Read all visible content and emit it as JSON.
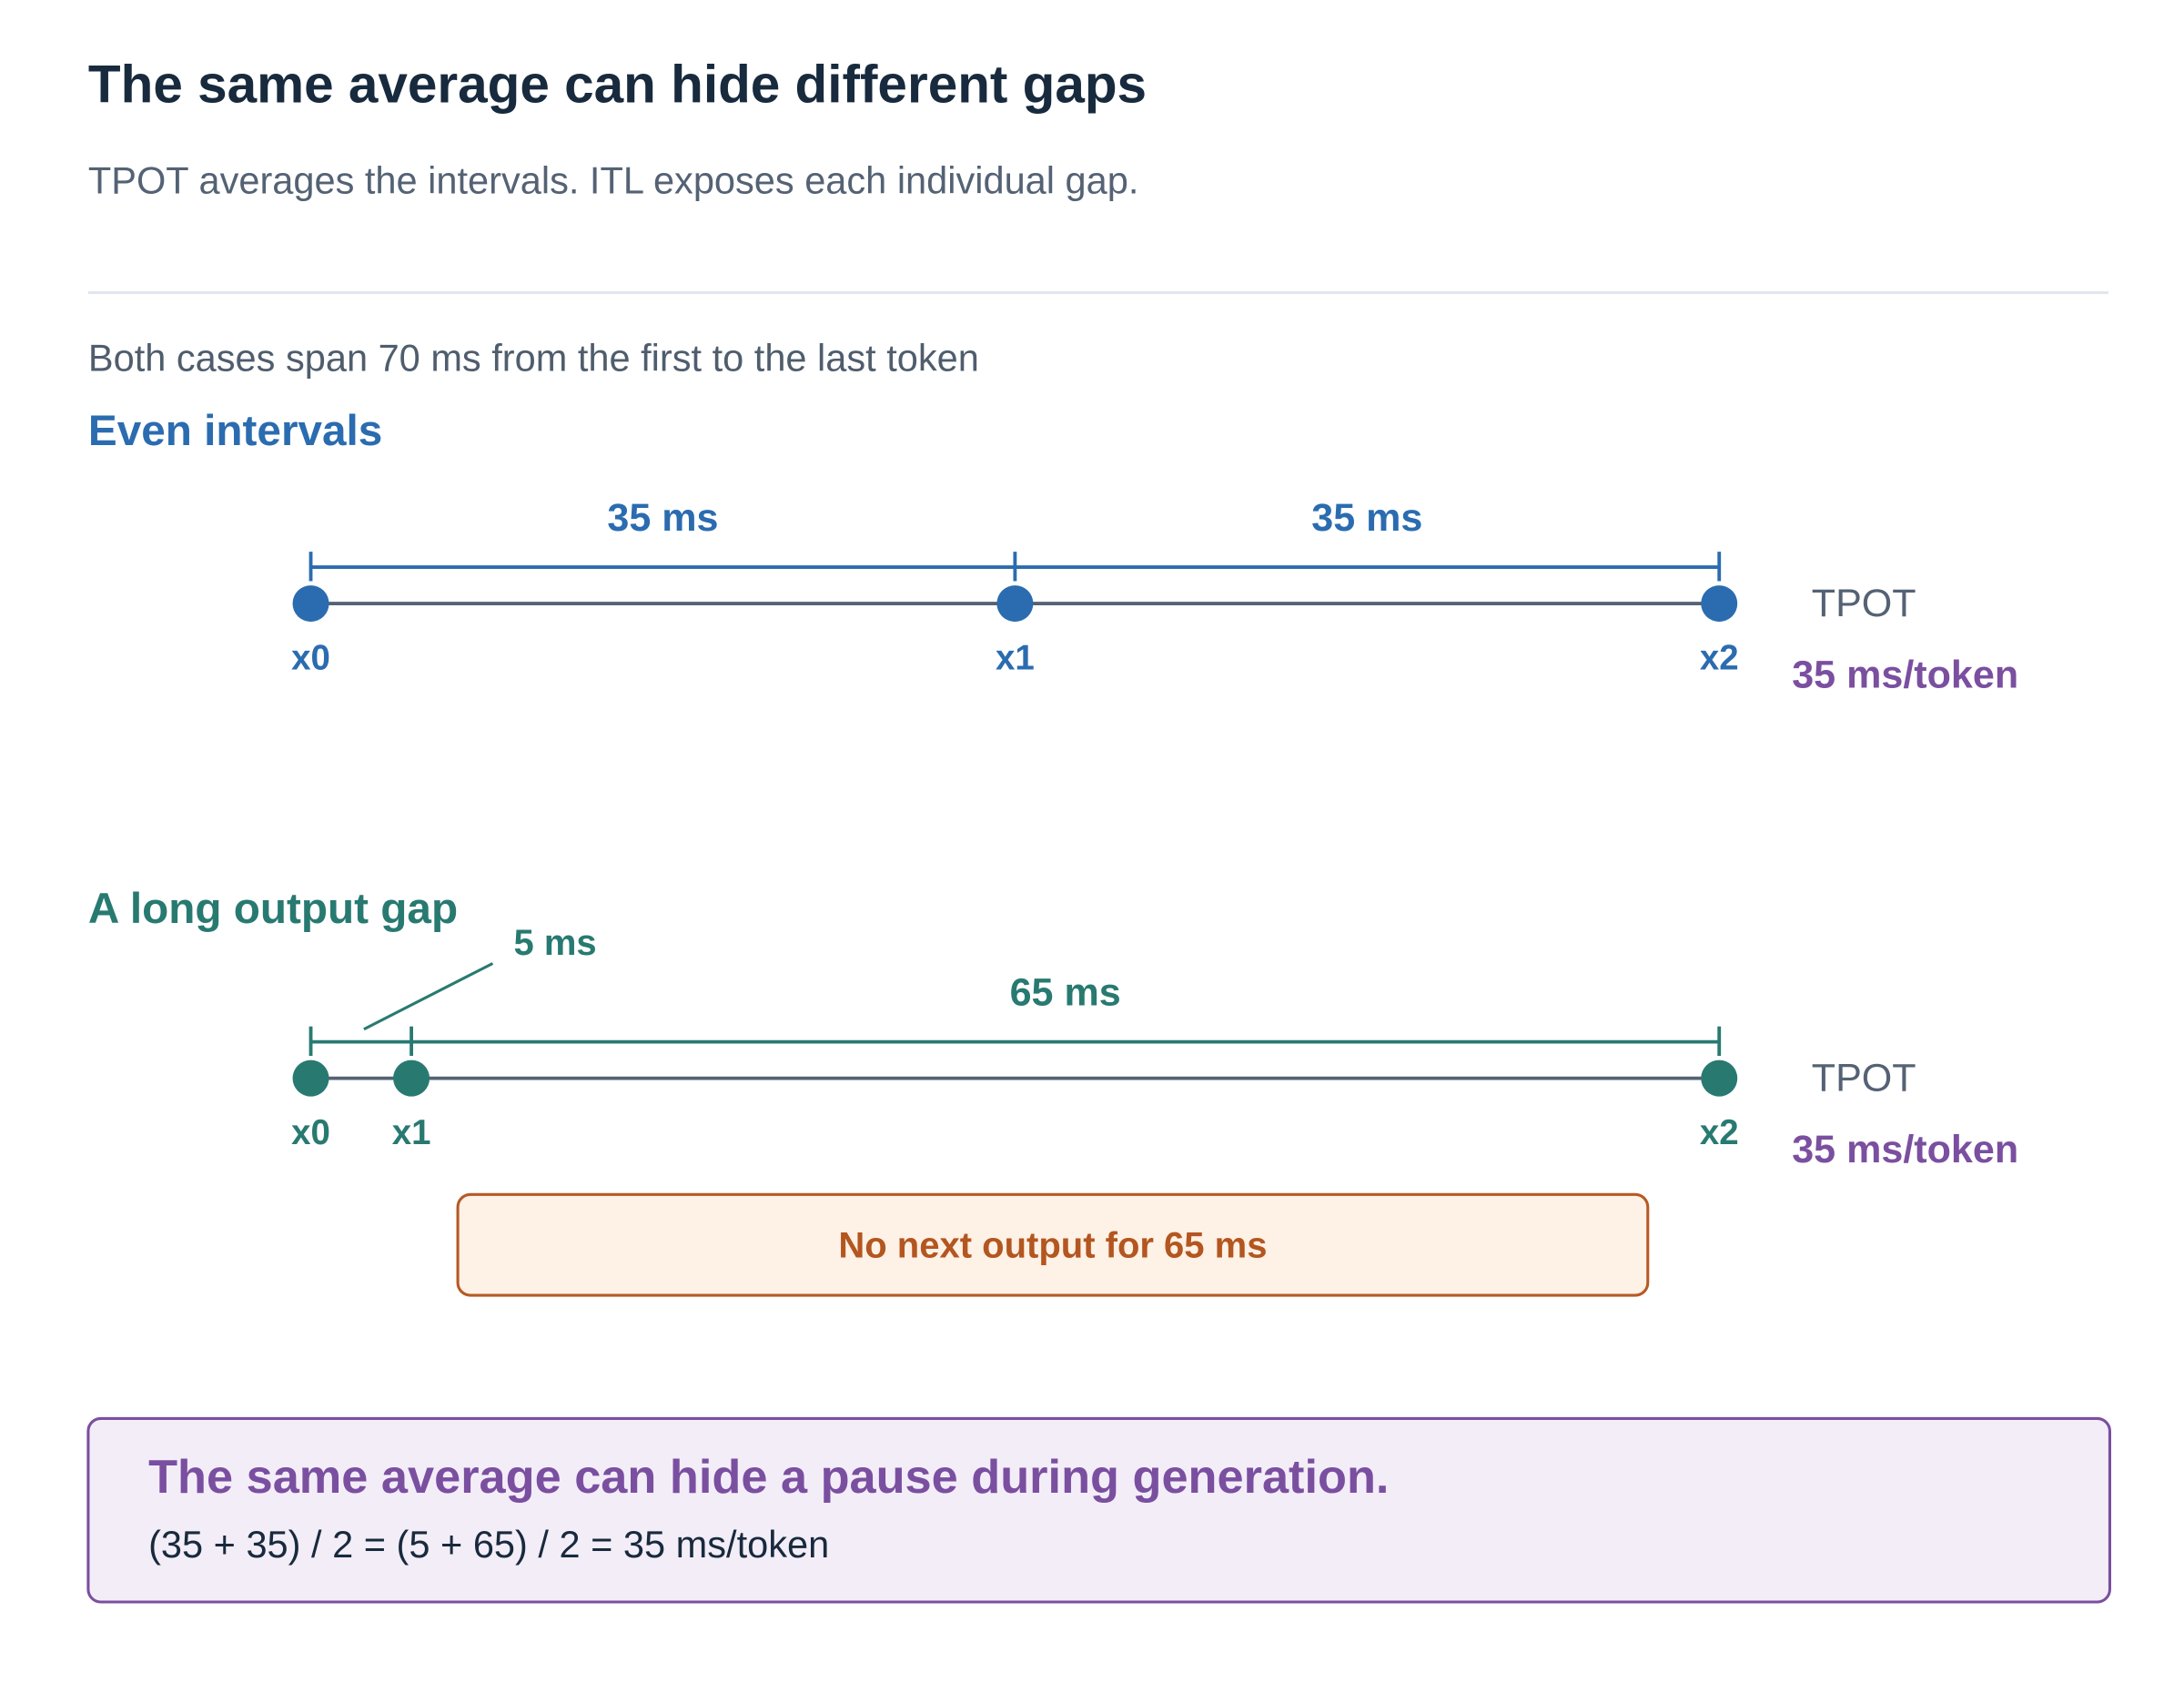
{
  "header": {
    "title": "The same average can hide different gaps",
    "subtitle": "TPOT averages the intervals. ITL exposes each individual gap."
  },
  "span_note": "Both cases span 70 ms from the first to the last token",
  "colors": {
    "even": "#2b6cb0",
    "gap": "#287a71",
    "axis": "#546274",
    "tpot_value": "#7a4fa0",
    "warning": "#b65a25"
  },
  "cases": [
    {
      "title": "Even intervals",
      "token_labels": [
        "x0",
        "x1",
        "x2"
      ],
      "token_times_ms": [
        0,
        35,
        70
      ],
      "interval_labels": [
        "35 ms",
        "35 ms"
      ],
      "metric_label": "TPOT",
      "metric_value": "35 ms/token"
    },
    {
      "title": "A long output gap",
      "token_labels": [
        "x0",
        "x1",
        "x2"
      ],
      "token_times_ms": [
        0,
        5,
        70
      ],
      "interval_labels": [
        "5 ms",
        "65 ms"
      ],
      "metric_label": "TPOT",
      "metric_value": "35 ms/token",
      "gap_note": "No next output for 65 ms"
    }
  ],
  "summary": {
    "title": "The same average can hide a pause during generation.",
    "formula": "(35 + 35) / 2 = (5 + 65) / 2 = 35 ms/token"
  }
}
